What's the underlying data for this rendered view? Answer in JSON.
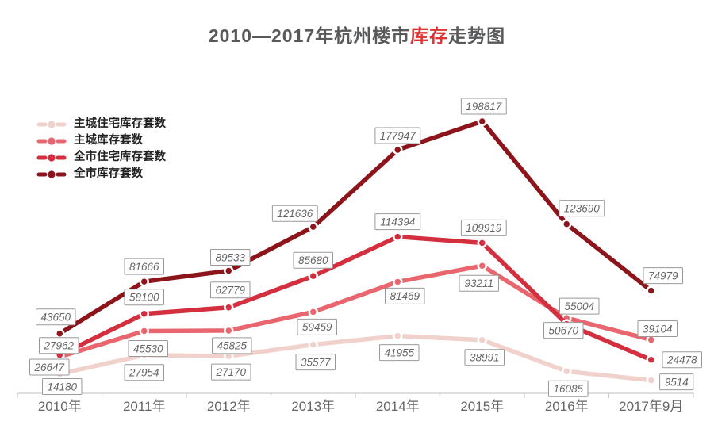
{
  "title": {
    "prefix": "2010—2017年杭州楼市",
    "highlight": "库存",
    "suffix": "走势图"
  },
  "colors": {
    "title_text": "#58595b",
    "title_highlight": "#e03333",
    "axis_line": "#cccccc",
    "axis_label": "#666666",
    "label_text": "#666666",
    "label_border": "#999999",
    "label_bg": "#ffffff",
    "point_ring": "#ffffff"
  },
  "chart_data": {
    "type": "line",
    "categories": [
      "2010年",
      "2011年",
      "2012年",
      "2013年",
      "2014年",
      "2015年",
      "2016年",
      "2017年9月"
    ],
    "series": [
      {
        "name": "主城住宅库存套数",
        "color": "#f0d1cb",
        "values": [
          14180,
          27954,
          27170,
          35577,
          41955,
          38991,
          16085,
          9514
        ],
        "label_offsets": [
          [
            3,
            16
          ],
          [
            0,
            22
          ],
          [
            3,
            20
          ],
          [
            3,
            22
          ],
          [
            2,
            21
          ],
          [
            3,
            22
          ],
          [
            2,
            22
          ],
          [
            32,
            2
          ]
        ]
      },
      {
        "name": "主城库存套数",
        "color": "#e9666e",
        "values": [
          26647,
          45530,
          45825,
          59459,
          81469,
          93211,
          55004,
          39104
        ],
        "label_offsets": [
          [
            -13,
            13
          ],
          [
            5,
            22
          ],
          [
            4,
            19
          ],
          [
            5,
            19
          ],
          [
            9,
            18
          ],
          [
            -4,
            22
          ],
          [
            16,
            -15
          ],
          [
            8,
            -14
          ]
        ]
      },
      {
        "name": "全市住宅库存套数",
        "color": "#d32f3e",
        "values": [
          27962,
          58100,
          62779,
          85680,
          114394,
          109919,
          50670,
          24478
        ],
        "label_offsets": [
          [
            -1,
            -12
          ],
          [
            0,
            -21
          ],
          [
            2,
            -22
          ],
          [
            0,
            -20
          ],
          [
            0,
            -19
          ],
          [
            2,
            -19
          ],
          [
            -4,
            8
          ],
          [
            39,
            0
          ]
        ]
      },
      {
        "name": "全市库存套数",
        "color": "#8c141a",
        "values": [
          43650,
          81666,
          89533,
          121636,
          177947,
          198817,
          123690,
          74979
        ],
        "label_offsets": [
          [
            -5,
            -21
          ],
          [
            0,
            -19
          ],
          [
            2,
            -17
          ],
          [
            -23,
            -17
          ],
          [
            0,
            -18
          ],
          [
            2,
            -19
          ],
          [
            19,
            -20
          ],
          [
            15,
            -19
          ]
        ]
      }
    ],
    "ylim": [
      0,
      210000
    ],
    "xlabel": "",
    "ylabel": "",
    "grid": false,
    "legend_position": "top-left",
    "point_labels": true
  }
}
